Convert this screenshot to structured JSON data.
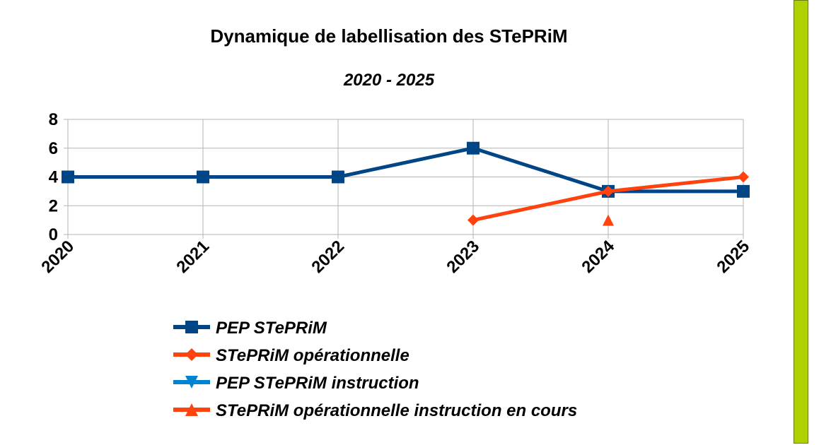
{
  "chart_data": {
    "type": "line",
    "title": "Dynamique de labellisation des STePRiM",
    "subtitle": "2020 - 2025",
    "xlabel": "",
    "ylabel": "",
    "categories": [
      "2020",
      "2021",
      "2022",
      "2023",
      "2024",
      "2025"
    ],
    "ylim": [
      0,
      8
    ],
    "yticks": [
      "0",
      "2",
      "4",
      "6",
      "8"
    ],
    "grid": true,
    "legend_placement": "bottom",
    "series": [
      {
        "name": "PEP STePRiM",
        "color": "#004586",
        "marker": "square",
        "values": [
          4,
          4,
          4,
          6,
          3,
          3
        ]
      },
      {
        "name": "STePRiM opérationnelle",
        "color": "#ff420e",
        "marker": "diamond",
        "values": [
          null,
          null,
          null,
          1,
          3,
          4
        ]
      },
      {
        "name": "PEP STePRiM instruction",
        "color": "#0084d1",
        "marker": "triangle-down",
        "values": [
          null,
          null,
          null,
          null,
          null,
          null
        ]
      },
      {
        "name": "STePRiM opérationnelle instruction en cours",
        "color": "#ff420e",
        "marker": "triangle-up",
        "values": [
          null,
          null,
          null,
          null,
          1,
          null
        ]
      }
    ]
  },
  "sidebar_accent": "#b0d000"
}
